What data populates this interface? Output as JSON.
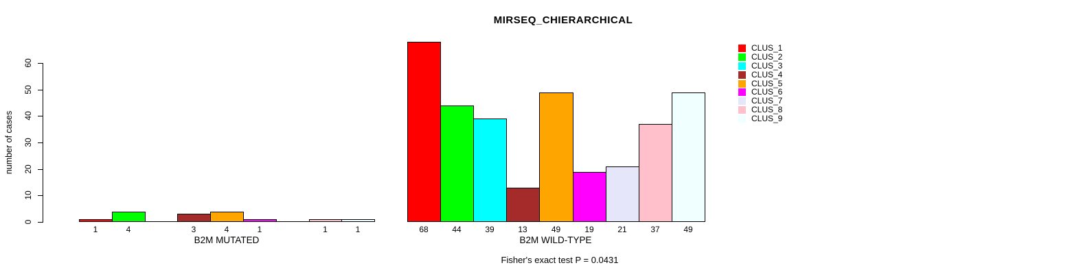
{
  "title": "MIRSEQ_CHIERARCHICAL",
  "chart_data": {
    "type": "bar",
    "title": "MIRSEQ_CHIERARCHICAL",
    "ylabel": "number of cases",
    "xlabel": "",
    "annotation": "Fisher's exact test P = 0.0431",
    "yticks": [
      0,
      10,
      20,
      30,
      40,
      50,
      60
    ],
    "ylim": [
      0,
      68
    ],
    "grid": false,
    "legend_position": "right",
    "bar_labels_hidden_for_zero": true,
    "categories": [
      "CLUS_1",
      "CLUS_2",
      "CLUS_3",
      "CLUS_4",
      "CLUS_5",
      "CLUS_6",
      "CLUS_7",
      "CLUS_8",
      "CLUS_9"
    ],
    "groups": [
      {
        "label": "B2M MUTATED",
        "values": [
          1,
          4,
          0,
          3,
          4,
          1,
          0,
          1,
          1
        ]
      },
      {
        "label": "B2M WILD-TYPE",
        "values": [
          68,
          44,
          39,
          13,
          49,
          19,
          21,
          37,
          49
        ]
      }
    ],
    "legend": [
      {
        "label": "CLUS_1",
        "color": "#FF0000"
      },
      {
        "label": "CLUS_2",
        "color": "#00FF00"
      },
      {
        "label": "CLUS_3",
        "color": "#00FFFF"
      },
      {
        "label": "CLUS_4",
        "color": "#A52A2A"
      },
      {
        "label": "CLUS_5",
        "color": "#FFA500"
      },
      {
        "label": "CLUS_6",
        "color": "#FF00FF"
      },
      {
        "label": "CLUS_7",
        "color": "#E6E6FA"
      },
      {
        "label": "CLUS_8",
        "color": "#FFC0CB"
      },
      {
        "label": "CLUS_9",
        "color": "#F0FFFF"
      }
    ],
    "axis_color": "#000000",
    "background_color": "#FFFFFF"
  }
}
